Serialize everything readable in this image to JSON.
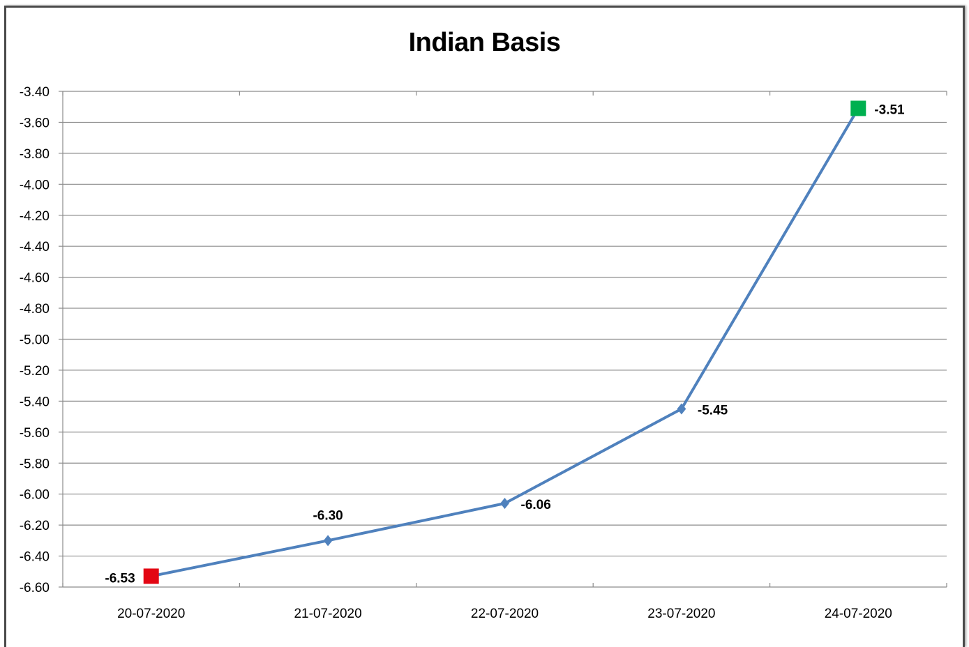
{
  "chart_data": {
    "type": "line",
    "title": "Indian Basis",
    "xlabel": "",
    "ylabel": "",
    "categories": [
      "20-07-2020",
      "21-07-2020",
      "22-07-2020",
      "23-07-2020",
      "24-07-2020"
    ],
    "series": [
      {
        "values": [
          -6.53,
          -6.3,
          -6.06,
          -5.45,
          -3.51
        ],
        "data_labels": [
          "-6.53",
          "-6.30",
          "-6.06",
          "-5.45",
          "-3.51"
        ],
        "color": "#4f81bd"
      }
    ],
    "y_ticks": [
      "-3.40",
      "-3.60",
      "-3.80",
      "-4.00",
      "-4.20",
      "-4.40",
      "-4.60",
      "-4.80",
      "-5.00",
      "-5.20",
      "-5.40",
      "-5.60",
      "-5.80",
      "-6.00",
      "-6.20",
      "-6.40",
      "-6.60"
    ],
    "ylim": [
      -6.6,
      -3.4
    ],
    "ystep": 0.2,
    "grid": "horizontal",
    "legend": "none",
    "markers": {
      "default": "diamond",
      "min_color": "#e30613",
      "max_color": "#00b050"
    }
  }
}
